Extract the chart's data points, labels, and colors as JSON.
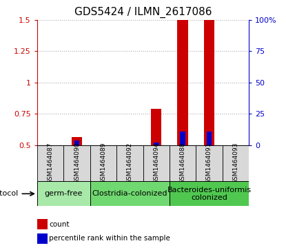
{
  "title": "GDS5424 / ILMN_2617086",
  "samples": [
    "GSM1464087",
    "GSM1464090",
    "GSM1464089",
    "GSM1464092",
    "GSM1464094",
    "GSM1464088",
    "GSM1464091",
    "GSM1464093"
  ],
  "red_values": [
    0.5,
    0.565,
    0.5,
    0.5,
    0.79,
    1.5,
    1.5,
    0.5
  ],
  "blue_values": [
    0.5,
    0.535,
    0.5,
    0.5,
    0.522,
    0.605,
    0.605,
    0.5
  ],
  "red_base": 0.5,
  "blue_base": 0.5,
  "ylim_left": [
    0.5,
    1.5
  ],
  "ylim_right": [
    0,
    100
  ],
  "yticks_left": [
    0.5,
    0.75,
    1.0,
    1.25,
    1.5
  ],
  "yticks_right": [
    0,
    25,
    50,
    75,
    100
  ],
  "ytick_labels_left": [
    "0.5",
    "0.75",
    "1",
    "1.25",
    "1.5"
  ],
  "ytick_labels_right": [
    "0",
    "25",
    "50",
    "75",
    "100%"
  ],
  "groups": [
    {
      "label": "germ-free",
      "start": 0,
      "end": 2,
      "color": "#a8e8a8"
    },
    {
      "label": "Clostridia-colonized",
      "start": 2,
      "end": 5,
      "color": "#70d870"
    },
    {
      "label": "Bacteroides-uniformis\ncolonized",
      "start": 5,
      "end": 8,
      "color": "#50c850"
    }
  ],
  "protocol_label": "protocol",
  "legend_red": "count",
  "legend_blue": "percentile rank within the sample",
  "bar_width": 0.4,
  "red_color": "#cc0000",
  "blue_color": "#0000cc",
  "grid_color": "#aaaaaa",
  "sample_bg_color": "#d8d8d8",
  "left_tick_color": "#cc0000",
  "right_tick_color": "#0000cc",
  "title_fontsize": 11,
  "tick_fontsize": 8,
  "sample_fontsize": 6.5,
  "group_fontsize": 8,
  "legend_fontsize": 7.5,
  "protocol_fontsize": 8
}
